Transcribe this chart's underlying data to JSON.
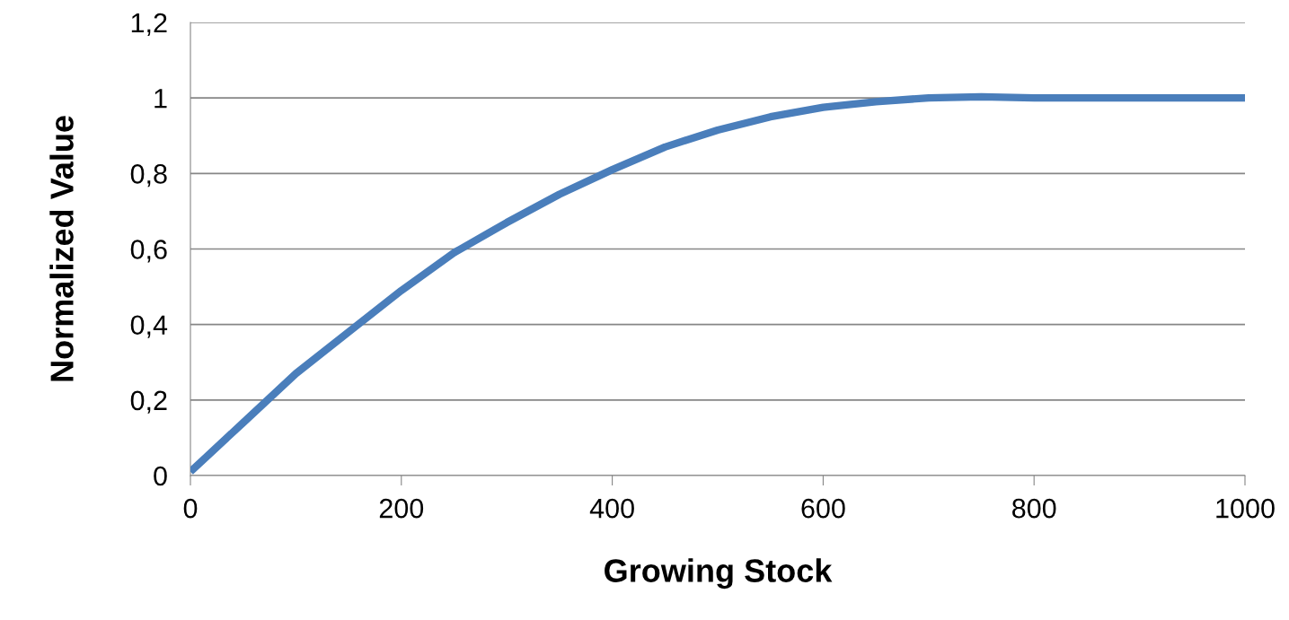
{
  "chart_data": {
    "type": "line",
    "xlabel": "Growing Stock",
    "ylabel": "Normalized Value",
    "x": [
      0,
      50,
      100,
      150,
      200,
      250,
      300,
      350,
      400,
      450,
      500,
      550,
      600,
      650,
      700,
      750,
      800,
      900,
      1000
    ],
    "series": [
      {
        "color": "#4a7ebb",
        "values": [
          0.01,
          0.14,
          0.27,
          0.38,
          0.49,
          0.59,
          0.67,
          0.745,
          0.81,
          0.87,
          0.915,
          0.95,
          0.975,
          0.99,
          1.0,
          1.003,
          1.0,
          1.0,
          1.0
        ]
      }
    ],
    "xlim": [
      0,
      1000
    ],
    "xticks": [
      0,
      200,
      400,
      600,
      800,
      1000
    ],
    "ylim": [
      0,
      1.2
    ],
    "yticks": [
      {
        "value": 0,
        "label": "0"
      },
      {
        "value": 0.2,
        "label": "0,2"
      },
      {
        "value": 0.4,
        "label": "0,4"
      },
      {
        "value": 0.6,
        "label": "0,6"
      },
      {
        "value": 0.8,
        "label": "0,8"
      },
      {
        "value": 1,
        "label": "1"
      },
      {
        "value": 1.2,
        "label": "1,2"
      }
    ],
    "grid": "y",
    "marker": "none",
    "line_style": "solid"
  }
}
